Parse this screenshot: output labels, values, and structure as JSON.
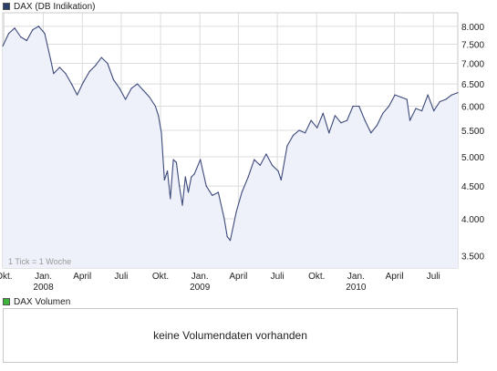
{
  "price_legend": {
    "label": "DAX (DB Indikation)",
    "color": "#2c3e6b"
  },
  "volume_legend": {
    "label": "DAX Volumen",
    "color": "#3cb43c"
  },
  "tick_note": "1 Tick = 1 Woche",
  "volume_message": "keine Volumendaten vorhanden",
  "colors": {
    "line": "#3d4a7a",
    "fill": "#eef0fa",
    "grid": "#dcdcdc",
    "frame": "#c8c8c8"
  },
  "chart_data": {
    "type": "area",
    "title": "DAX (DB Indikation)",
    "ylabel": "",
    "xlabel": "",
    "yscale": "log",
    "ylim": [
      3350,
      8400
    ],
    "y_ticks": [
      "8.000",
      "7.500",
      "7.000",
      "6.500",
      "6.000",
      "5.500",
      "5.000",
      "4.500",
      "4.000",
      "3.500"
    ],
    "y_tick_values": [
      8000,
      7500,
      7000,
      6500,
      6000,
      5500,
      5000,
      4500,
      4000,
      3500
    ],
    "x_range": [
      "2007-09-28",
      "2010-08-27"
    ],
    "x_ticks": [
      {
        "date": "2007-10-01",
        "label": "Okt."
      },
      {
        "date": "2008-01-01",
        "label": "Jan.",
        "year": "2008"
      },
      {
        "date": "2008-04-01",
        "label": "April"
      },
      {
        "date": "2008-07-01",
        "label": "Juli"
      },
      {
        "date": "2008-10-01",
        "label": "Okt."
      },
      {
        "date": "2009-01-01",
        "label": "Jan.",
        "year": "2009"
      },
      {
        "date": "2009-04-01",
        "label": "April"
      },
      {
        "date": "2009-07-01",
        "label": "Juli"
      },
      {
        "date": "2009-10-01",
        "label": "Okt."
      },
      {
        "date": "2010-01-01",
        "label": "Jan.",
        "year": "2010"
      },
      {
        "date": "2010-04-01",
        "label": "April"
      },
      {
        "date": "2010-07-01",
        "label": "Juli"
      }
    ],
    "series": [
      {
        "name": "DAX (DB Indikation)",
        "points": [
          [
            "2007-09-28",
            7450
          ],
          [
            "2007-10-12",
            7800
          ],
          [
            "2007-10-26",
            7950
          ],
          [
            "2007-11-09",
            7700
          ],
          [
            "2007-11-23",
            7600
          ],
          [
            "2007-12-07",
            7900
          ],
          [
            "2007-12-21",
            8000
          ],
          [
            "2008-01-04",
            7800
          ],
          [
            "2008-01-18",
            7100
          ],
          [
            "2008-01-25",
            6750
          ],
          [
            "2008-02-08",
            6900
          ],
          [
            "2008-02-22",
            6750
          ],
          [
            "2008-03-07",
            6500
          ],
          [
            "2008-03-20",
            6250
          ],
          [
            "2008-04-04",
            6550
          ],
          [
            "2008-04-18",
            6800
          ],
          [
            "2008-05-02",
            6950
          ],
          [
            "2008-05-16",
            7150
          ],
          [
            "2008-05-30",
            7000
          ],
          [
            "2008-06-13",
            6600
          ],
          [
            "2008-06-27",
            6400
          ],
          [
            "2008-07-11",
            6150
          ],
          [
            "2008-07-25",
            6400
          ],
          [
            "2008-08-08",
            6500
          ],
          [
            "2008-08-22",
            6350
          ],
          [
            "2008-09-05",
            6200
          ],
          [
            "2008-09-19",
            6000
          ],
          [
            "2008-09-26",
            5800
          ],
          [
            "2008-10-03",
            5450
          ],
          [
            "2008-10-10",
            4600
          ],
          [
            "2008-10-17",
            4750
          ],
          [
            "2008-10-24",
            4300
          ],
          [
            "2008-10-31",
            4950
          ],
          [
            "2008-11-07",
            4900
          ],
          [
            "2008-11-14",
            4500
          ],
          [
            "2008-11-21",
            4200
          ],
          [
            "2008-11-28",
            4650
          ],
          [
            "2008-12-05",
            4400
          ],
          [
            "2008-12-12",
            4650
          ],
          [
            "2008-12-19",
            4700
          ],
          [
            "2009-01-02",
            4950
          ],
          [
            "2009-01-16",
            4500
          ],
          [
            "2009-01-30",
            4350
          ],
          [
            "2009-02-13",
            4400
          ],
          [
            "2009-02-27",
            4000
          ],
          [
            "2009-03-06",
            3750
          ],
          [
            "2009-03-13",
            3700
          ],
          [
            "2009-03-27",
            4100
          ],
          [
            "2009-04-09",
            4400
          ],
          [
            "2009-04-24",
            4650
          ],
          [
            "2009-05-08",
            4950
          ],
          [
            "2009-05-22",
            4850
          ],
          [
            "2009-06-05",
            5050
          ],
          [
            "2009-06-19",
            4850
          ],
          [
            "2009-07-03",
            4750
          ],
          [
            "2009-07-10",
            4600
          ],
          [
            "2009-07-24",
            5200
          ],
          [
            "2009-08-07",
            5400
          ],
          [
            "2009-08-21",
            5500
          ],
          [
            "2009-09-04",
            5450
          ],
          [
            "2009-09-18",
            5700
          ],
          [
            "2009-10-02",
            5550
          ],
          [
            "2009-10-16",
            5850
          ],
          [
            "2009-10-30",
            5450
          ],
          [
            "2009-11-13",
            5800
          ],
          [
            "2009-11-27",
            5650
          ],
          [
            "2009-12-11",
            5700
          ],
          [
            "2009-12-25",
            6000
          ],
          [
            "2010-01-08",
            6000
          ],
          [
            "2010-01-22",
            5700
          ],
          [
            "2010-02-05",
            5450
          ],
          [
            "2010-02-19",
            5600
          ],
          [
            "2010-03-05",
            5850
          ],
          [
            "2010-03-19",
            6000
          ],
          [
            "2010-04-02",
            6250
          ],
          [
            "2010-04-16",
            6200
          ],
          [
            "2010-04-30",
            6150
          ],
          [
            "2010-05-07",
            5700
          ],
          [
            "2010-05-21",
            5950
          ],
          [
            "2010-06-04",
            5900
          ],
          [
            "2010-06-18",
            6250
          ],
          [
            "2010-07-02",
            5900
          ],
          [
            "2010-07-16",
            6100
          ],
          [
            "2010-07-30",
            6150
          ],
          [
            "2010-08-13",
            6250
          ],
          [
            "2010-08-27",
            6300
          ]
        ]
      }
    ]
  }
}
